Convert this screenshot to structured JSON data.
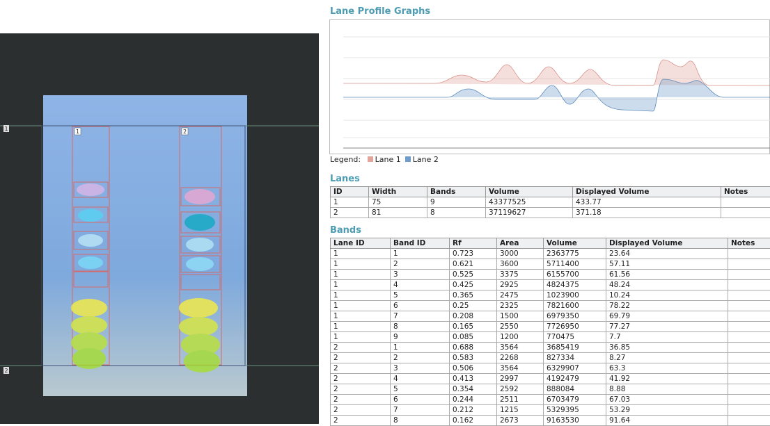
{
  "image": {
    "lane_labels": [
      "1",
      "2"
    ],
    "side_markers": [
      "1",
      "2"
    ]
  },
  "profile": {
    "title": "Lane Profile Graphs",
    "legend_label": "Legend:",
    "legend": [
      {
        "name": "Lane 1",
        "color": "#e3a49b"
      },
      {
        "name": "Lane 2",
        "color": "#6f9cc9"
      }
    ]
  },
  "lanes": {
    "title": "Lanes",
    "columns": [
      "ID",
      "Width",
      "Bands",
      "Volume",
      "Displayed Volume",
      "Notes"
    ],
    "rows": [
      [
        "1",
        "75",
        "9",
        "43377525",
        "433.77"
      ],
      [
        "2",
        "81",
        "8",
        "37119627",
        "371.18"
      ]
    ]
  },
  "bands": {
    "title": "Bands",
    "columns": [
      "Lane ID",
      "Band ID",
      "Rf",
      "Area",
      "Volume",
      "Displayed Volume",
      "Notes"
    ],
    "rows": [
      [
        "1",
        "1",
        "0.723",
        "3000",
        "2363775",
        "23.64"
      ],
      [
        "1",
        "2",
        "0.621",
        "3600",
        "5711400",
        "57.11"
      ],
      [
        "1",
        "3",
        "0.525",
        "3375",
        "6155700",
        "61.56"
      ],
      [
        "1",
        "4",
        "0.425",
        "2925",
        "4824375",
        "48.24"
      ],
      [
        "1",
        "5",
        "0.365",
        "2475",
        "1023900",
        "10.24"
      ],
      [
        "1",
        "6",
        "0.25",
        "2325",
        "7821600",
        "78.22"
      ],
      [
        "1",
        "7",
        "0.208",
        "1500",
        "6979350",
        "69.79"
      ],
      [
        "1",
        "8",
        "0.165",
        "2550",
        "7726950",
        "77.27"
      ],
      [
        "1",
        "9",
        "0.085",
        "1200",
        "770475",
        "7.7"
      ],
      [
        "2",
        "1",
        "0.688",
        "3564",
        "3685419",
        "36.85"
      ],
      [
        "2",
        "2",
        "0.583",
        "2268",
        "827334",
        "8.27"
      ],
      [
        "2",
        "3",
        "0.506",
        "3564",
        "6329907",
        "63.3"
      ],
      [
        "2",
        "4",
        "0.413",
        "2997",
        "4192479",
        "41.92"
      ],
      [
        "2",
        "5",
        "0.354",
        "2592",
        "888084",
        "8.88"
      ],
      [
        "2",
        "6",
        "0.244",
        "2511",
        "6703479",
        "67.03"
      ],
      [
        "2",
        "7",
        "0.212",
        "1215",
        "5329395",
        "53.29"
      ],
      [
        "2",
        "8",
        "0.162",
        "2673",
        "9163530",
        "91.64"
      ]
    ]
  }
}
